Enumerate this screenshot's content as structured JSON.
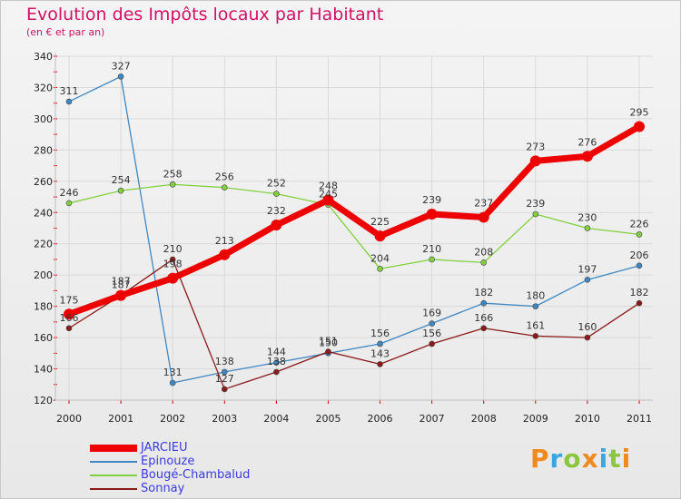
{
  "chart_data": {
    "type": "line",
    "title": "Evolution des Impôts locaux par Habitant",
    "subtitle": "(en € et par an)",
    "x": [
      "2000",
      "2001",
      "2002",
      "2003",
      "2004",
      "2005",
      "2006",
      "2007",
      "2008",
      "2009",
      "2010",
      "2011"
    ],
    "ylim": [
      120,
      340
    ],
    "yticks": [
      120,
      140,
      160,
      180,
      200,
      220,
      240,
      260,
      280,
      300,
      320,
      340
    ],
    "grid": true,
    "legend_position": "bottom-left",
    "series": [
      {
        "name": "Epinouze",
        "color": "#3f87c3",
        "values": [
          311,
          327,
          131,
          138,
          144,
          150,
          156,
          169,
          182,
          180,
          197,
          206
        ]
      },
      {
        "name": "Bougé-Chambalud",
        "color": "#82d041",
        "values": [
          246,
          254,
          258,
          256,
          252,
          245,
          204,
          210,
          208,
          239,
          230,
          226
        ]
      },
      {
        "name": "Sonnay",
        "color": "#8b1a1a",
        "values": [
          166,
          187,
          210,
          127,
          138,
          151,
          143,
          156,
          166,
          161,
          160,
          182
        ]
      },
      {
        "name": "JARCIEU",
        "color": "#ee0000",
        "values": [
          175,
          187,
          198,
          213,
          232,
          248,
          225,
          239,
          237,
          273,
          276,
          295
        ]
      }
    ],
    "legend_order": [
      "JARCIEU",
      "Epinouze",
      "Bougé-Chambalud",
      "Sonnay"
    ],
    "data_labels": [
      {
        "series": "Epinouze",
        "labels": [
          "311",
          "327",
          "131",
          "138",
          "144",
          "150",
          "156",
          "169",
          "182",
          "180",
          "197",
          "206"
        ]
      },
      {
        "series": "Bougé-Chambalud",
        "labels": [
          "246",
          "254",
          "258",
          "256",
          "252",
          "245",
          "204",
          "210",
          "208",
          "239",
          "230",
          "226"
        ]
      },
      {
        "series": "Sonnay",
        "labels": [
          "166",
          "187",
          "210",
          "127",
          "138",
          "151",
          "143",
          "156",
          "166",
          "161",
          "160",
          "182"
        ]
      },
      {
        "series": "JARCIEU",
        "labels": [
          "175",
          "187",
          "198",
          "213",
          "232",
          "248",
          "225",
          "239",
          "237",
          "273",
          "276",
          "295"
        ]
      }
    ]
  },
  "logo": {
    "text": "Proxiti",
    "letter_colors": [
      "#f08a1e",
      "#3aa7e0",
      "#8cc63f",
      "#f08a1e",
      "#3aa7e0",
      "#8cc63f",
      "#f08a1e"
    ]
  }
}
